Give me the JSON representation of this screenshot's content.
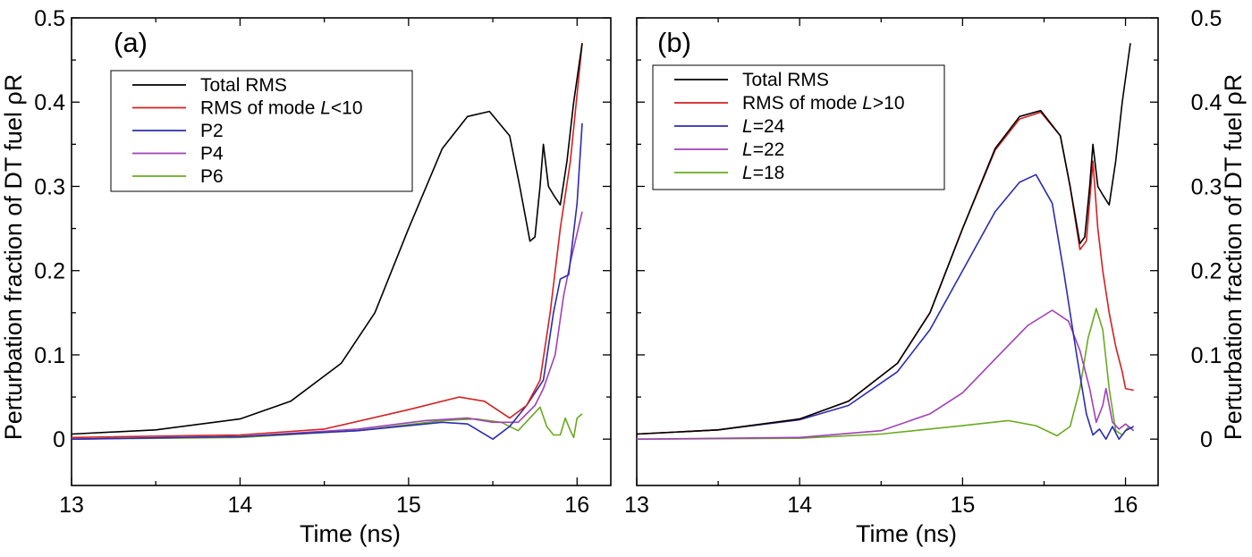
{
  "chart_data": [
    {
      "type": "line",
      "panel_label": "(a)",
      "xlabel": "Time (ns)",
      "ylabel": "Perturbation fraction of DT fuel ρR",
      "xlim": [
        13,
        16.2
      ],
      "ylim": [
        -0.055,
        0.5
      ],
      "xticks": [
        13,
        14,
        15,
        16
      ],
      "yticks": [
        0,
        0.1,
        0.2,
        0.3,
        0.4,
        0.5
      ],
      "ytick_labels": [
        "0",
        "0.1",
        "0.2",
        "0.3",
        "0.4",
        "0.5"
      ],
      "ylabel_side": "left",
      "legend": "top-left",
      "series": [
        {
          "name": "Total RMS",
          "color": "#000000",
          "points": [
            [
              13.0,
              0.006
            ],
            [
              13.5,
              0.011
            ],
            [
              14.0,
              0.024
            ],
            [
              14.3,
              0.045
            ],
            [
              14.6,
              0.09
            ],
            [
              14.8,
              0.15
            ],
            [
              15.0,
              0.25
            ],
            [
              15.2,
              0.345
            ],
            [
              15.35,
              0.383
            ],
            [
              15.48,
              0.389
            ],
            [
              15.6,
              0.36
            ],
            [
              15.66,
              0.3
            ],
            [
              15.72,
              0.235
            ],
            [
              15.75,
              0.24
            ],
            [
              15.78,
              0.3
            ],
            [
              15.8,
              0.35
            ],
            [
              15.83,
              0.3
            ],
            [
              15.86,
              0.29
            ],
            [
              15.9,
              0.278
            ],
            [
              15.94,
              0.33
            ],
            [
              15.98,
              0.4
            ],
            [
              16.03,
              0.47
            ]
          ]
        },
        {
          "name": "RMS of mode L<10",
          "name_prefix": "RMS of mode ",
          "name_italic": "L",
          "name_suffix": "<10",
          "color": "#d42020",
          "points": [
            [
              13.0,
              0.002
            ],
            [
              14.0,
              0.005
            ],
            [
              14.5,
              0.012
            ],
            [
              15.0,
              0.035
            ],
            [
              15.3,
              0.05
            ],
            [
              15.45,
              0.045
            ],
            [
              15.6,
              0.025
            ],
            [
              15.7,
              0.04
            ],
            [
              15.78,
              0.07
            ],
            [
              15.84,
              0.15
            ],
            [
              15.9,
              0.25
            ],
            [
              15.96,
              0.33
            ],
            [
              16.03,
              0.47
            ]
          ]
        },
        {
          "name": "P2",
          "color": "#2b2bb0",
          "points": [
            [
              13.0,
              0.0
            ],
            [
              14.0,
              0.003
            ],
            [
              14.7,
              0.01
            ],
            [
              15.2,
              0.02
            ],
            [
              15.35,
              0.018
            ],
            [
              15.5,
              0.0
            ],
            [
              15.6,
              0.015
            ],
            [
              15.7,
              0.04
            ],
            [
              15.8,
              0.07
            ],
            [
              15.86,
              0.15
            ],
            [
              15.9,
              0.19
            ],
            [
              15.95,
              0.195
            ],
            [
              16.0,
              0.28
            ],
            [
              16.03,
              0.375
            ]
          ]
        },
        {
          "name": "P4",
          "color": "#a040b8",
          "points": [
            [
              13.0,
              0.0
            ],
            [
              14.0,
              0.003
            ],
            [
              14.7,
              0.012
            ],
            [
              15.1,
              0.022
            ],
            [
              15.35,
              0.025
            ],
            [
              15.5,
              0.02
            ],
            [
              15.65,
              0.02
            ],
            [
              15.75,
              0.04
            ],
            [
              15.8,
              0.06
            ],
            [
              15.87,
              0.1
            ],
            [
              15.92,
              0.17
            ],
            [
              15.96,
              0.21
            ],
            [
              16.03,
              0.27
            ]
          ]
        },
        {
          "name": "P6",
          "color": "#6aaa20",
          "points": [
            [
              13.0,
              0.0
            ],
            [
              14.0,
              0.002
            ],
            [
              14.7,
              0.01
            ],
            [
              15.2,
              0.022
            ],
            [
              15.4,
              0.024
            ],
            [
              15.55,
              0.02
            ],
            [
              15.65,
              0.01
            ],
            [
              15.72,
              0.025
            ],
            [
              15.78,
              0.038
            ],
            [
              15.82,
              0.015
            ],
            [
              15.86,
              0.005
            ],
            [
              15.9,
              0.005
            ],
            [
              15.93,
              0.025
            ],
            [
              15.96,
              0.01
            ],
            [
              15.98,
              0.002
            ],
            [
              16.0,
              0.025
            ],
            [
              16.03,
              0.03
            ]
          ]
        }
      ]
    },
    {
      "type": "line",
      "panel_label": "(b)",
      "xlabel": "Time (ns)",
      "ylabel": "Perturbation fraction of DT fuel ρR",
      "xlim": [
        13,
        16.2
      ],
      "ylim": [
        -0.055,
        0.5
      ],
      "xticks": [
        13,
        14,
        15,
        16
      ],
      "yticks": [
        0,
        0.1,
        0.2,
        0.3,
        0.4,
        0.5
      ],
      "ytick_labels": [
        "0",
        "0.1",
        "0.2",
        "0.3",
        "0.4",
        "0.5"
      ],
      "ylabel_side": "right",
      "legend": "top-left",
      "series": [
        {
          "name": "Total RMS",
          "color": "#000000",
          "points": [
            [
              13.0,
              0.006
            ],
            [
              13.5,
              0.011
            ],
            [
              14.0,
              0.024
            ],
            [
              14.3,
              0.045
            ],
            [
              14.6,
              0.09
            ],
            [
              14.8,
              0.15
            ],
            [
              15.0,
              0.25
            ],
            [
              15.2,
              0.345
            ],
            [
              15.35,
              0.383
            ],
            [
              15.48,
              0.39
            ],
            [
              15.6,
              0.36
            ],
            [
              15.66,
              0.3
            ],
            [
              15.72,
              0.232
            ],
            [
              15.75,
              0.24
            ],
            [
              15.78,
              0.3
            ],
            [
              15.8,
              0.35
            ],
            [
              15.83,
              0.3
            ],
            [
              15.86,
              0.29
            ],
            [
              15.9,
              0.278
            ],
            [
              15.94,
              0.33
            ],
            [
              15.98,
              0.4
            ],
            [
              16.03,
              0.47
            ]
          ]
        },
        {
          "name": "RMS of mode L>10",
          "name_prefix": "RMS of mode ",
          "name_italic": "L",
          "name_suffix": ">10",
          "color": "#d42020",
          "points": [
            [
              13.0,
              0.006
            ],
            [
              13.5,
              0.011
            ],
            [
              14.0,
              0.024
            ],
            [
              14.3,
              0.045
            ],
            [
              14.6,
              0.09
            ],
            [
              14.8,
              0.15
            ],
            [
              15.0,
              0.25
            ],
            [
              15.2,
              0.343
            ],
            [
              15.35,
              0.38
            ],
            [
              15.48,
              0.388
            ],
            [
              15.6,
              0.36
            ],
            [
              15.66,
              0.3
            ],
            [
              15.72,
              0.225
            ],
            [
              15.76,
              0.235
            ],
            [
              15.8,
              0.33
            ],
            [
              15.83,
              0.25
            ],
            [
              15.86,
              0.2
            ],
            [
              15.9,
              0.15
            ],
            [
              15.94,
              0.11
            ],
            [
              15.98,
              0.08
            ],
            [
              16.0,
              0.06
            ],
            [
              16.05,
              0.058
            ]
          ]
        },
        {
          "name": "L=24",
          "name_prefix": "",
          "name_italic": "L",
          "name_suffix": "=24",
          "color": "#2b2bb0",
          "points": [
            [
              13.0,
              0.006
            ],
            [
              13.5,
              0.011
            ],
            [
              14.0,
              0.023
            ],
            [
              14.3,
              0.04
            ],
            [
              14.6,
              0.08
            ],
            [
              14.8,
              0.13
            ],
            [
              15.0,
              0.2
            ],
            [
              15.2,
              0.27
            ],
            [
              15.35,
              0.305
            ],
            [
              15.45,
              0.314
            ],
            [
              15.55,
              0.28
            ],
            [
              15.62,
              0.2
            ],
            [
              15.7,
              0.1
            ],
            [
              15.76,
              0.03
            ],
            [
              15.8,
              0.005
            ],
            [
              15.84,
              0.012
            ],
            [
              15.88,
              0.0
            ],
            [
              15.92,
              0.015
            ],
            [
              15.96,
              0.0
            ],
            [
              16.0,
              0.01
            ],
            [
              16.05,
              0.015
            ]
          ]
        },
        {
          "name": "L=22",
          "name_prefix": "",
          "name_italic": "L",
          "name_suffix": "=22",
          "color": "#a040b8",
          "points": [
            [
              13.0,
              0.0
            ],
            [
              14.0,
              0.002
            ],
            [
              14.5,
              0.01
            ],
            [
              14.8,
              0.03
            ],
            [
              15.0,
              0.055
            ],
            [
              15.2,
              0.095
            ],
            [
              15.4,
              0.135
            ],
            [
              15.55,
              0.153
            ],
            [
              15.65,
              0.14
            ],
            [
              15.72,
              0.105
            ],
            [
              15.78,
              0.06
            ],
            [
              15.82,
              0.02
            ],
            [
              15.86,
              0.04
            ],
            [
              15.88,
              0.06
            ],
            [
              15.92,
              0.02
            ],
            [
              15.96,
              0.012
            ],
            [
              16.0,
              0.018
            ],
            [
              16.05,
              0.01
            ]
          ]
        },
        {
          "name": "L=18",
          "name_prefix": "",
          "name_italic": "L",
          "name_suffix": "=18",
          "color": "#6aaa20",
          "points": [
            [
              13.0,
              0.0
            ],
            [
              14.0,
              0.001
            ],
            [
              14.5,
              0.006
            ],
            [
              15.0,
              0.016
            ],
            [
              15.28,
              0.022
            ],
            [
              15.45,
              0.016
            ],
            [
              15.58,
              0.004
            ],
            [
              15.66,
              0.015
            ],
            [
              15.72,
              0.06
            ],
            [
              15.77,
              0.12
            ],
            [
              15.82,
              0.155
            ],
            [
              15.86,
              0.13
            ],
            [
              15.9,
              0.06
            ],
            [
              15.94,
              0.01
            ],
            [
              15.98,
              0.005
            ],
            [
              16.02,
              0.015
            ],
            [
              16.05,
              0.01
            ]
          ]
        }
      ]
    }
  ]
}
